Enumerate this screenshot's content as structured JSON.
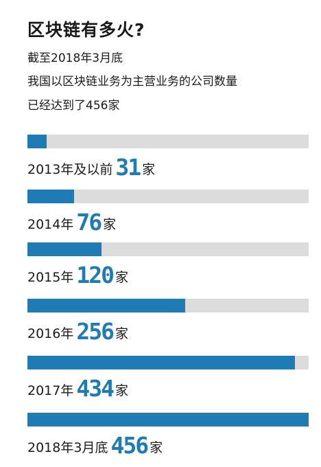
{
  "title": "区块链有多火?",
  "subtitle": [
    "截至2018年3月底",
    "我国以区块链业务为主营业务的公司数量",
    "已经达到了456家"
  ],
  "colors": {
    "bar": "#1f7bb3",
    "track": "#dcdcdc",
    "value_text": "#1f7bb3"
  },
  "chart_data": {
    "type": "bar",
    "orientation": "horizontal",
    "title": "区块链有多火?",
    "xlim": [
      0,
      456
    ],
    "grid": false,
    "unit": "家",
    "categories": [
      "2013年及以前",
      "2014年",
      "2015年",
      "2016年",
      "2017年",
      "2018年3月底"
    ],
    "values": [
      31,
      76,
      120,
      256,
      434,
      456
    ],
    "bars": [
      {
        "prefix": "2013年及以前",
        "value": 31,
        "unit": "家"
      },
      {
        "prefix": "2014年",
        "value": 76,
        "unit": "家"
      },
      {
        "prefix": "2015年",
        "value": 120,
        "unit": "家"
      },
      {
        "prefix": "2016年",
        "value": 256,
        "unit": "家"
      },
      {
        "prefix": "2017年",
        "value": 434,
        "unit": "家"
      },
      {
        "prefix": "2018年3月底",
        "value": 456,
        "unit": "家"
      }
    ]
  }
}
